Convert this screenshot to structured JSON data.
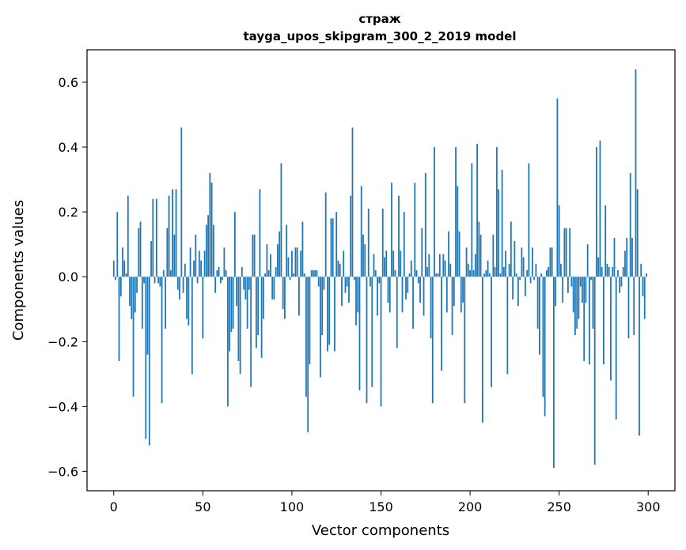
{
  "chart_data": {
    "type": "bar",
    "title": "страж",
    "subtitle": "tayga_upos_skipgram_300_2_2019 model",
    "xlabel": "Vector components",
    "ylabel": "Components values",
    "xlim": [
      -15,
      315
    ],
    "ylim": [
      -0.66,
      0.7
    ],
    "xticks": [
      0,
      50,
      100,
      150,
      200,
      250,
      300
    ],
    "yticks": [
      -0.6,
      -0.4,
      -0.2,
      0.0,
      0.2,
      0.4,
      0.6
    ],
    "bar_color": "#1f77b4",
    "x": "indices 0..299",
    "values": [
      0.05,
      -0.01,
      0.2,
      -0.26,
      -0.06,
      0.09,
      0.05,
      0.01,
      0.25,
      -0.09,
      -0.13,
      -0.37,
      -0.11,
      -0.05,
      0.15,
      0.17,
      -0.16,
      -0.02,
      -0.5,
      -0.24,
      -0.52,
      0.11,
      0.24,
      -0.02,
      0.24,
      -0.02,
      -0.03,
      -0.39,
      0.02,
      -0.16,
      0.15,
      0.25,
      0.02,
      0.27,
      0.13,
      0.27,
      -0.04,
      -0.07,
      0.46,
      -0.05,
      0.04,
      -0.13,
      -0.15,
      0.09,
      -0.3,
      0.05,
      0.13,
      -0.02,
      0.08,
      0.05,
      -0.19,
      0.08,
      0.16,
      0.19,
      0.32,
      0.29,
      0.16,
      -0.05,
      0.02,
      0.03,
      -0.02,
      -0.01,
      0.09,
      0.02,
      -0.4,
      -0.23,
      -0.17,
      -0.16,
      0.2,
      -0.09,
      -0.26,
      -0.3,
      0.03,
      -0.04,
      -0.07,
      -0.16,
      -0.04,
      -0.34,
      0.13,
      0.13,
      -0.22,
      -0.18,
      0.27,
      -0.25,
      -0.13,
      0.01,
      0.1,
      0.02,
      0.07,
      -0.07,
      -0.07,
      0.03,
      0.1,
      0.14,
      0.35,
      -0.1,
      -0.13,
      0.16,
      0.06,
      -0.01,
      0.08,
      0.01,
      0.09,
      0.09,
      -0.12,
      0.08,
      0.17,
      0.01,
      -0.37,
      -0.48,
      -0.27,
      0.02,
      0.02,
      0.02,
      0.02,
      -0.03,
      -0.31,
      -0.18,
      -0.04,
      0.26,
      -0.23,
      -0.21,
      0.18,
      0.18,
      -0.23,
      0.2,
      0.05,
      0.04,
      -0.09,
      0.08,
      -0.05,
      -0.03,
      -0.08,
      0.25,
      0.46,
      -0.01,
      -0.15,
      -0.11,
      -0.35,
      0.28,
      0.13,
      0.1,
      -0.39,
      0.21,
      -0.03,
      -0.34,
      0.07,
      0.02,
      -0.12,
      -0.02,
      -0.4,
      0.21,
      0.06,
      0.08,
      -0.08,
      -0.11,
      0.29,
      0.08,
      0.02,
      -0.22,
      0.25,
      0.08,
      -0.11,
      0.2,
      -0.07,
      -0.05,
      0.01,
      0.05,
      -0.16,
      0.29,
      0.02,
      -0.02,
      -0.08,
      0.15,
      -0.12,
      0.32,
      0.03,
      0.07,
      -0.19,
      -0.39,
      0.4,
      0.01,
      0.01,
      0.07,
      -0.29,
      0.07,
      0.05,
      -0.11,
      0.14,
      0.04,
      -0.18,
      -0.09,
      0.4,
      0.28,
      0.14,
      -0.11,
      -0.08,
      -0.39,
      0.09,
      0.04,
      0.02,
      0.35,
      0.02,
      0.07,
      0.41,
      0.17,
      0.13,
      -0.45,
      0.01,
      0.02,
      0.05,
      0.01,
      -0.34,
      0.13,
      0.03,
      0.4,
      0.27,
      0.01,
      0.33,
      0.03,
      0.08,
      -0.3,
      0.04,
      0.17,
      -0.07,
      0.11,
      0.01,
      -0.09,
      -0.01,
      0.09,
      0.06,
      -0.06,
      0.02,
      0.35,
      -0.02,
      0.09,
      -0.01,
      0.04,
      -0.16,
      -0.24,
      0.01,
      -0.37,
      -0.43,
      0.02,
      0.03,
      0.09,
      0.09,
      -0.59,
      -0.09,
      0.55,
      0.22,
      0.04,
      -0.08,
      0.15,
      0.15,
      -0.05,
      0.15,
      -0.03,
      -0.11,
      -0.18,
      -0.16,
      -0.13,
      -0.03,
      -0.08,
      -0.26,
      -0.08,
      0.1,
      -0.27,
      -0.01,
      -0.16,
      -0.58,
      0.4,
      0.06,
      0.42,
      0.03,
      -0.27,
      0.22,
      0.04,
      0.03,
      -0.32,
      0.03,
      0.12,
      -0.44,
      0.02,
      -0.05,
      -0.03,
      0.03,
      0.08,
      0.12,
      -0.19,
      0.32,
      0.12,
      -0.18,
      0.64,
      0.27,
      -0.49,
      0.04,
      -0.06,
      -0.13,
      0.01
    ]
  }
}
